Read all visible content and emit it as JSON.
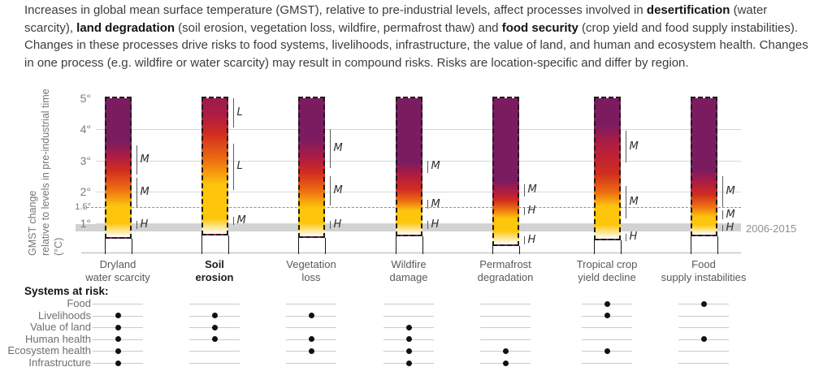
{
  "intro": {
    "runs": [
      {
        "text": "Increases in global mean surface temperature (GMST), relative to pre-industrial levels, affect processes involved in ",
        "bold": false
      },
      {
        "text": "desertification",
        "bold": true
      },
      {
        "text": " (water scarcity), ",
        "bold": false
      },
      {
        "text": "land degradation",
        "bold": true
      },
      {
        "text": " (soil erosion, vegetation loss, wildfire, permafrost thaw) and ",
        "bold": false
      },
      {
        "text": "food security",
        "bold": true
      },
      {
        "text": " (crop yield and food supply instabilities). Changes in these processes drive risks to food systems, livelihoods, infrastructure, the value of land, and human and ecosystem health. Changes in one process (e.g. wildfire or water scarcity) may result in compound risks. Risks are location-specific and differ by region.",
        "bold": false
      }
    ]
  },
  "axis": {
    "title_line1": "GMST change",
    "title_line2": "relative to levels in pre-industrial time (°C)",
    "ticks": [
      {
        "label": "5°",
        "t": 5,
        "small": false
      },
      {
        "label": "4°",
        "t": 4,
        "small": false
      },
      {
        "label": "3°",
        "t": 3,
        "small": false
      },
      {
        "label": "2°",
        "t": 2,
        "small": false
      },
      {
        "label": "1.5°",
        "t": 1.5,
        "small": true
      },
      {
        "label": "1°",
        "t": 1,
        "small": false
      }
    ],
    "gridline_ts": [
      4,
      3,
      2,
      1
    ],
    "dashed_reference_t": 1.5,
    "band": {
      "t_top": 0.97,
      "t_bottom": 0.72,
      "label": "2006-2015"
    }
  },
  "chart_data": {
    "type": "bar",
    "variant": "burning-embers-risk-gradient",
    "ylabel": "GMST change relative to levels in pre-industrial time (°C)",
    "ylim": [
      0.2,
      5
    ],
    "ytick_values": [
      5,
      4,
      3,
      2,
      1.5,
      1
    ],
    "reference_line": {
      "value": 1.5,
      "style": "dashed"
    },
    "reference_band": {
      "range": [
        0.72,
        0.97
      ],
      "label": "2006-2015"
    },
    "risk_palette": {
      "purple": "#7b1c60",
      "crimson": "#ad1c44",
      "red": "#d02c20",
      "orange": "#ee7011",
      "yellow": "#fdc60d",
      "white": "#ffffff"
    },
    "categories": [
      "Dryland\nwater scarcity",
      "Soil\nerosion",
      "Vegetation\nloss",
      "Wildfire\ndamage",
      "Permafrost\ndegradation",
      "Tropical crop\nyield decline",
      "Food\nsupply instabilities"
    ],
    "bars": [
      {
        "name": "Dryland\nwater scarcity",
        "emphasized": false,
        "bottom_t": 0.5,
        "gradient_stops": [
          [
            5.05,
            "#7b1c60"
          ],
          [
            3.65,
            "#7b1c60"
          ],
          [
            3.15,
            "#ad1c44"
          ],
          [
            2.7,
            "#d02c20"
          ],
          [
            2.05,
            "#ee7011"
          ],
          [
            1.5,
            "#fdc60d"
          ],
          [
            0.95,
            "#fdc60d"
          ],
          [
            0.5,
            "#ffffff"
          ]
        ],
        "confidence_markers": [
          {
            "label": "M",
            "t_top": 3.5,
            "t_bottom": 2.55
          },
          {
            "label": "M",
            "t_top": 2.45,
            "t_bottom": 1.5
          },
          {
            "label": "H",
            "t_top": 1.07,
            "t_bottom": 0.82
          }
        ]
      },
      {
        "name": "Soil\nerosion",
        "emphasized": true,
        "bottom_t": 0.6,
        "gradient_stops": [
          [
            5.05,
            "#9c1b4b"
          ],
          [
            4.5,
            "#ad1c44"
          ],
          [
            3.9,
            "#d02c20"
          ],
          [
            3.0,
            "#ee7011"
          ],
          [
            2.2,
            "#fdc60d"
          ],
          [
            1.1,
            "#fdc60d"
          ],
          [
            0.6,
            "#ffffff"
          ]
        ],
        "confidence_markers": [
          {
            "label": "L",
            "t_top": 5.0,
            "t_bottom": 4.05
          },
          {
            "label": "L",
            "t_top": 3.55,
            "t_bottom": 2.05
          },
          {
            "label": "M",
            "t_top": 1.2,
            "t_bottom": 0.95
          }
        ]
      },
      {
        "name": "Vegetation\nloss",
        "emphasized": false,
        "bottom_t": 0.52,
        "gradient_stops": [
          [
            5.05,
            "#7b1c60"
          ],
          [
            3.7,
            "#7b1c60"
          ],
          [
            3.1,
            "#ad1c44"
          ],
          [
            2.6,
            "#d02c20"
          ],
          [
            2.0,
            "#ee7011"
          ],
          [
            1.45,
            "#fdc60d"
          ],
          [
            0.95,
            "#fdc60d"
          ],
          [
            0.52,
            "#ffffff"
          ]
        ],
        "confidence_markers": [
          {
            "label": "M",
            "t_top": 4.0,
            "t_bottom": 2.75
          },
          {
            "label": "M",
            "t_top": 2.5,
            "t_bottom": 1.57
          },
          {
            "label": "H",
            "t_top": 1.07,
            "t_bottom": 0.82
          }
        ]
      },
      {
        "name": "Wildfire\ndamage",
        "emphasized": false,
        "bottom_t": 0.56,
        "gradient_stops": [
          [
            5.05,
            "#7b1c60"
          ],
          [
            2.95,
            "#7b1c60"
          ],
          [
            2.55,
            "#ad1c44"
          ],
          [
            2.05,
            "#d02c20"
          ],
          [
            1.65,
            "#ee7011"
          ],
          [
            1.35,
            "#fdc60d"
          ],
          [
            0.95,
            "#fdc60d"
          ],
          [
            0.56,
            "#ffffff"
          ]
        ],
        "confidence_markers": [
          {
            "label": "M",
            "t_top": 3.0,
            "t_bottom": 2.6
          },
          {
            "label": "M",
            "t_top": 1.75,
            "t_bottom": 1.45
          },
          {
            "label": "H",
            "t_top": 1.07,
            "t_bottom": 0.82
          }
        ]
      },
      {
        "name": "Permafrost\ndegradation",
        "emphasized": false,
        "bottom_t": 0.25,
        "gradient_stops": [
          [
            5.05,
            "#7b1c60"
          ],
          [
            2.35,
            "#7b1c60"
          ],
          [
            2.0,
            "#ad1c44"
          ],
          [
            1.7,
            "#d02c20"
          ],
          [
            1.4,
            "#ee7011"
          ],
          [
            1.1,
            "#fdc60d"
          ],
          [
            0.7,
            "#fdc60d"
          ],
          [
            0.25,
            "#ffffff"
          ]
        ],
        "confidence_markers": [
          {
            "label": "M",
            "t_top": 2.25,
            "t_bottom": 1.85
          },
          {
            "label": "H",
            "t_top": 1.5,
            "t_bottom": 1.25
          },
          {
            "label": "H",
            "t_top": 0.58,
            "t_bottom": 0.3
          }
        ]
      },
      {
        "name": "Tropical crop\nyield decline",
        "emphasized": false,
        "bottom_t": 0.45,
        "gradient_stops": [
          [
            5.05,
            "#7b1c60"
          ],
          [
            4.2,
            "#7b1c60"
          ],
          [
            3.6,
            "#ad1c44"
          ],
          [
            2.6,
            "#d02c20"
          ],
          [
            1.95,
            "#ee7011"
          ],
          [
            1.5,
            "#fdc60d"
          ],
          [
            0.9,
            "#fdc60d"
          ],
          [
            0.45,
            "#ffffff"
          ]
        ],
        "confidence_markers": [
          {
            "label": "M",
            "t_top": 3.95,
            "t_bottom": 2.95
          },
          {
            "label": "M",
            "t_top": 2.2,
            "t_bottom": 1.15
          },
          {
            "label": "H",
            "t_top": 0.65,
            "t_bottom": 0.42
          }
        ]
      },
      {
        "name": "Food\nsupply instabilities",
        "emphasized": false,
        "bottom_t": 0.58,
        "gradient_stops": [
          [
            5.05,
            "#7b1c60"
          ],
          [
            2.7,
            "#7b1c60"
          ],
          [
            2.3,
            "#ad1c44"
          ],
          [
            1.9,
            "#d02c20"
          ],
          [
            1.5,
            "#ee7011"
          ],
          [
            1.15,
            "#fdc60d"
          ],
          [
            0.9,
            "#fdc60d"
          ],
          [
            0.58,
            "#ffffff"
          ]
        ],
        "confidence_markers": [
          {
            "label": "M",
            "t_top": 2.5,
            "t_bottom": 1.5
          },
          {
            "label": "M",
            "t_top": 1.4,
            "t_bottom": 1.12
          },
          {
            "label": "H",
            "t_top": 0.95,
            "t_bottom": 0.73
          }
        ]
      }
    ],
    "systems_matrix": {
      "rows": [
        "Food",
        "Livelihoods",
        "Value of land",
        "Human health",
        "Ecosystem health",
        "Infrastructure"
      ],
      "columns": [
        "Dryland water scarcity",
        "Soil erosion",
        "Vegetation loss",
        "Wildfire damage",
        "Permafrost degradation",
        "Tropical crop yield decline",
        "Food supply instabilities"
      ],
      "dots": [
        [
          0,
          1,
          1,
          1,
          1,
          1
        ],
        [
          0,
          1,
          1,
          1,
          0,
          0
        ],
        [
          0,
          1,
          0,
          1,
          1,
          0
        ],
        [
          0,
          0,
          1,
          1,
          1,
          1
        ],
        [
          0,
          0,
          0,
          0,
          1,
          1
        ],
        [
          1,
          1,
          0,
          0,
          1,
          0
        ],
        [
          1,
          0,
          0,
          1,
          0,
          0
        ]
      ]
    }
  },
  "systems": {
    "header": "Systems at risk:"
  }
}
